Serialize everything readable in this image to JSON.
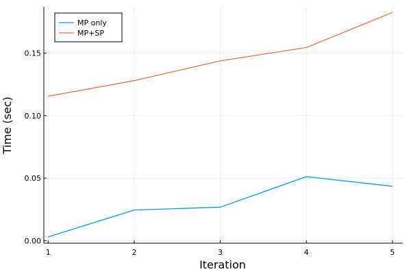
{
  "chart_data": {
    "type": "line",
    "title": "",
    "xlabel": "Iteration",
    "ylabel": "Time (sec)",
    "xlim": [
      0.95,
      5.12
    ],
    "ylim": [
      -0.002,
      0.187
    ],
    "x_ticks": [
      1,
      2,
      3,
      4,
      5
    ],
    "x_tick_labels": [
      "1",
      "2",
      "3",
      "4",
      "5"
    ],
    "y_ticks": [
      0.0,
      0.05,
      0.1,
      0.15
    ],
    "y_tick_labels": [
      "0.00",
      "0.05",
      "0.10",
      "0.15"
    ],
    "grid": true,
    "legend_position": "top-left",
    "x": [
      1,
      2,
      3,
      4,
      5
    ],
    "series": [
      {
        "name": "MP only",
        "color": "#009AFA",
        "values": [
          0.003,
          0.0245,
          0.0268,
          0.0512,
          0.0435
        ]
      },
      {
        "name": "MP+SP",
        "color": "#E36F47",
        "values": [
          0.1155,
          0.128,
          0.1438,
          0.1545,
          0.1825
        ]
      }
    ]
  }
}
